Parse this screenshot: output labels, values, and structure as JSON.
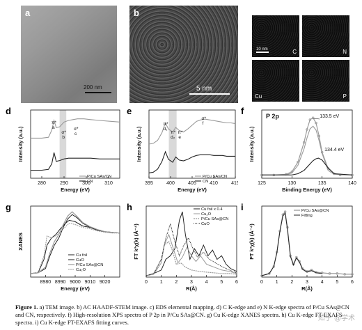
{
  "panel_labels": {
    "a": "a",
    "b": "b",
    "c": "c",
    "d": "d",
    "e": "e",
    "f": "f",
    "g": "g",
    "h": "h",
    "i": "i"
  },
  "scale_bars": {
    "a": "200 nm",
    "b": "5 nm",
    "c": "10 nm"
  },
  "eds_labels": [
    "C",
    "N",
    "Cu",
    "P"
  ],
  "caption": {
    "lead": "Figure 1.",
    "text": " a) TEM image. b) AC HAADF-STEM image. c) EDS elemental mapping. d) C K-edge and e) N K-edge spectra of P/Cu SAs@CN and CN, respectively. f) High-resolution XPS spectra of P 2p in P/Cu SAs@CN. g) Cu K-edge XANES spectra. h) Cu K-edge FT-EXAFS spectra. i) Cu K-edge FT-EXAFS fitting curves."
  },
  "watermark": "知乎 @学术",
  "colors": {
    "dark": "#222222",
    "light": "#9a9a9a",
    "band": "#d9d9d9"
  },
  "chart_data": [
    {
      "id": "d",
      "type": "line",
      "xlabel": "Energy (eV)",
      "ylabel": "Intensity (a.u.)",
      "xlim": [
        275,
        315
      ],
      "xticks": [
        280,
        290,
        300,
        310
      ],
      "annotations": [
        "π*",
        "a",
        "σ*",
        "b",
        "σ*",
        "c"
      ],
      "legend": [
        "P/Cu SAs/CN",
        "CN"
      ],
      "series": [
        {
          "name": "P/Cu SAs/CN",
          "x": [
            275,
            280,
            283,
            284.5,
            285.5,
            286.5,
            288,
            289,
            290,
            292,
            294,
            296,
            299,
            302,
            306,
            310,
            315
          ],
          "y": [
            0.6,
            0.6,
            0.61,
            0.7,
            0.82,
            0.73,
            0.74,
            0.77,
            0.8,
            0.82,
            0.83,
            0.84,
            0.84,
            0.83,
            0.82,
            0.81,
            0.8
          ]
        },
        {
          "name": "CN",
          "x": [
            275,
            280,
            283,
            284.5,
            285.5,
            286.5,
            288,
            289,
            290,
            292,
            294,
            296,
            299,
            302,
            306,
            310,
            315
          ],
          "y": [
            0.2,
            0.2,
            0.21,
            0.28,
            0.42,
            0.31,
            0.32,
            0.33,
            0.34,
            0.35,
            0.35,
            0.35,
            0.35,
            0.35,
            0.34,
            0.34,
            0.34
          ]
        }
      ]
    },
    {
      "id": "e",
      "type": "line",
      "xlabel": "Energy (eV)",
      "ylabel": "Intensity (a.u.)",
      "xlim": [
        395,
        415
      ],
      "xticks": [
        395,
        400,
        405,
        410,
        415
      ],
      "annotations": [
        "π*",
        "d₁",
        "π*",
        "d₂",
        "π*",
        "e",
        "σ*",
        "f"
      ],
      "legend": [
        "P/Cu SAs/CN",
        "CN"
      ],
      "series": [
        {
          "name": "P/Cu SAs/CN",
          "x": [
            395,
            396,
            397,
            398,
            398.8,
            399.5,
            400.5,
            401.2,
            402,
            403,
            404,
            405,
            406,
            407,
            408,
            409,
            410,
            411,
            412,
            413,
            414,
            415
          ],
          "y": [
            0.5,
            0.51,
            0.55,
            0.65,
            0.78,
            0.7,
            0.66,
            0.72,
            0.68,
            0.66,
            0.7,
            0.75,
            0.8,
            0.82,
            0.83,
            0.82,
            0.81,
            0.8,
            0.79,
            0.78,
            0.78,
            0.77
          ]
        },
        {
          "name": "CN",
          "x": [
            395,
            396,
            397,
            398,
            398.8,
            399.5,
            400.5,
            401.2,
            402,
            403,
            404,
            405,
            406,
            407,
            408,
            409,
            410,
            411,
            412,
            413,
            414,
            415
          ],
          "y": [
            0.12,
            0.13,
            0.17,
            0.27,
            0.4,
            0.3,
            0.26,
            0.33,
            0.29,
            0.28,
            0.3,
            0.33,
            0.35,
            0.36,
            0.36,
            0.36,
            0.35,
            0.35,
            0.35,
            0.34,
            0.34,
            0.34
          ]
        }
      ]
    },
    {
      "id": "f",
      "type": "line",
      "title": "P 2p",
      "xlabel": "Binding Energy (eV)",
      "ylabel": "Intensity (a.u.)",
      "xlim": [
        125,
        140
      ],
      "xticks": [
        125,
        130,
        135,
        140
      ],
      "annotations": [
        "133.5 eV",
        "134.4 eV"
      ],
      "series": [
        {
          "name": "data",
          "x": [
            125,
            127,
            129,
            130,
            131,
            132,
            132.5,
            133,
            133.5,
            134,
            134.5,
            135,
            136,
            137,
            138,
            140
          ],
          "y": [
            0.05,
            0.05,
            0.06,
            0.1,
            0.25,
            0.55,
            0.75,
            0.9,
            0.93,
            0.85,
            0.65,
            0.4,
            0.15,
            0.07,
            0.05,
            0.05
          ]
        },
        {
          "name": "133.5 eV",
          "x": [
            125,
            129,
            130,
            131,
            132,
            132.5,
            133,
            133.5,
            134,
            134.5,
            135,
            136,
            137,
            140
          ],
          "y": [
            0.05,
            0.05,
            0.08,
            0.2,
            0.45,
            0.62,
            0.76,
            0.8,
            0.74,
            0.58,
            0.38,
            0.12,
            0.06,
            0.05
          ]
        },
        {
          "name": "134.4 eV",
          "x": [
            125,
            130,
            131,
            132,
            133,
            133.5,
            134,
            134.4,
            135,
            136,
            137,
            140
          ],
          "y": [
            0.05,
            0.05,
            0.07,
            0.12,
            0.22,
            0.27,
            0.3,
            0.31,
            0.28,
            0.16,
            0.07,
            0.05
          ]
        }
      ]
    },
    {
      "id": "g",
      "type": "line",
      "xlabel": "Energy (eV)",
      "ylabel": "XANES",
      "xlim": [
        8970,
        9030
      ],
      "xticks": [
        8980,
        8990,
        9000,
        9010,
        9020
      ],
      "legend": [
        "Cu foil",
        "CuO",
        "P/Cu SAs@CN",
        "Cu₂O"
      ],
      "series": [
        {
          "name": "Cu foil",
          "x": [
            8970,
            8975,
            8979,
            8981,
            8984,
            8987,
            8990,
            8993,
            8996,
            9000,
            9005,
            9010,
            9015,
            9020,
            9025,
            9030
          ],
          "y": [
            0.05,
            0.06,
            0.25,
            0.45,
            0.55,
            0.6,
            0.68,
            0.75,
            0.8,
            0.78,
            0.72,
            0.7,
            0.66,
            0.64,
            0.63,
            0.62
          ]
        },
        {
          "name": "CuO",
          "x": [
            8970,
            8975,
            8980,
            8983,
            8986,
            8989,
            8992,
            8995,
            8998,
            9001,
            9005,
            9010,
            9015,
            9020,
            9025,
            9030
          ],
          "y": [
            0.05,
            0.06,
            0.12,
            0.3,
            0.45,
            0.55,
            0.7,
            0.82,
            0.88,
            0.84,
            0.76,
            0.7,
            0.66,
            0.64,
            0.63,
            0.62
          ]
        },
        {
          "name": "P/Cu SAs@CN",
          "x": [
            8970,
            8975,
            8980,
            8983,
            8986,
            8989,
            8992,
            8995,
            8998,
            9001,
            9005,
            9010,
            9015,
            9020,
            9025,
            9030
          ],
          "y": [
            0.05,
            0.06,
            0.14,
            0.34,
            0.5,
            0.6,
            0.74,
            0.86,
            0.92,
            0.86,
            0.77,
            0.71,
            0.67,
            0.64,
            0.63,
            0.62
          ]
        },
        {
          "name": "Cu₂O",
          "x": [
            8970,
            8975,
            8979,
            8981,
            8984,
            8987,
            8990,
            8993,
            8996,
            9000,
            9005,
            9010,
            9015,
            9020,
            9025,
            9030
          ],
          "y": [
            0.05,
            0.07,
            0.3,
            0.58,
            0.55,
            0.58,
            0.64,
            0.7,
            0.76,
            0.74,
            0.7,
            0.68,
            0.65,
            0.63,
            0.62,
            0.62
          ]
        }
      ]
    },
    {
      "id": "h",
      "type": "line",
      "xlabel": "R(Å)",
      "ylabel": "FT k³χ(k) (Å⁻⁴)",
      "xlim": [
        0,
        6
      ],
      "xticks": [
        0,
        1,
        2,
        3,
        4,
        5,
        6
      ],
      "legend": [
        "Cu foil x 0.4",
        "Cu₂O",
        "P/Cu SAs@CN",
        "CuO"
      ],
      "series": [
        {
          "name": "Cu foil x 0.4",
          "x": [
            0,
            0.5,
            1,
            1.3,
            1.6,
            1.9,
            2.2,
            2.4,
            2.6,
            2.9,
            3.2,
            3.5,
            3.8,
            4.1,
            4.4,
            4.7,
            5,
            5.3,
            5.6,
            6
          ],
          "y": [
            0.02,
            0.05,
            0.1,
            0.25,
            0.3,
            0.4,
            0.8,
            0.92,
            0.6,
            0.25,
            0.4,
            0.3,
            0.45,
            0.3,
            0.38,
            0.25,
            0.3,
            0.18,
            0.12,
            0.08
          ]
        },
        {
          "name": "Cu₂O",
          "x": [
            0,
            0.5,
            1,
            1.2,
            1.5,
            1.8,
            2.1,
            2.4,
            2.7,
            3,
            3.3,
            3.6,
            4,
            4.5,
            5,
            5.5,
            6
          ],
          "y": [
            0.02,
            0.04,
            0.2,
            0.45,
            0.6,
            0.4,
            0.2,
            0.28,
            0.42,
            0.3,
            0.22,
            0.3,
            0.18,
            0.14,
            0.1,
            0.08,
            0.05
          ]
        },
        {
          "name": "P/Cu SAs@CN",
          "x": [
            0,
            0.5,
            1,
            1.2,
            1.5,
            1.7,
            2,
            2.3,
            2.6,
            3,
            3.5,
            4,
            4.5,
            5,
            5.5,
            6
          ],
          "y": [
            0.02,
            0.05,
            0.25,
            0.45,
            0.5,
            0.4,
            0.18,
            0.2,
            0.14,
            0.1,
            0.08,
            0.07,
            0.06,
            0.05,
            0.05,
            0.04
          ]
        },
        {
          "name": "CuO",
          "x": [
            0,
            0.5,
            1,
            1.3,
            1.6,
            1.9,
            2.2,
            2.5,
            2.8,
            3.1,
            3.4,
            3.8,
            4.2,
            4.6,
            5,
            5.5,
            6
          ],
          "y": [
            0.02,
            0.05,
            0.25,
            0.55,
            0.75,
            0.5,
            0.3,
            0.45,
            0.55,
            0.4,
            0.28,
            0.35,
            0.25,
            0.2,
            0.15,
            0.1,
            0.06
          ]
        }
      ]
    },
    {
      "id": "i",
      "type": "line",
      "xlabel": "R(Å)",
      "ylabel": "FT k³χ(k) (Å⁻⁴)",
      "xlim": [
        0,
        6
      ],
      "xticks": [
        0,
        1,
        2,
        3,
        4,
        5,
        6
      ],
      "legend": [
        "P/Cu SAs@CN",
        "Fitting"
      ],
      "series": [
        {
          "name": "P/Cu SAs@CN",
          "x": [
            0,
            0.5,
            0.8,
            1,
            1.2,
            1.4,
            1.55,
            1.7,
            1.9,
            2.1,
            2.3,
            2.5,
            2.7,
            3,
            3.3,
            3.6,
            4,
            4.5,
            5,
            5.5,
            6
          ],
          "y": [
            0.02,
            0.05,
            0.15,
            0.35,
            0.65,
            0.88,
            0.92,
            0.7,
            0.3,
            0.18,
            0.28,
            0.22,
            0.12,
            0.08,
            0.1,
            0.07,
            0.06,
            0.05,
            0.05,
            0.04,
            0.04
          ]
        },
        {
          "name": "Fitting",
          "x": [
            0,
            0.5,
            0.8,
            1,
            1.2,
            1.4,
            1.55,
            1.7,
            1.9,
            2.1,
            2.3,
            2.5,
            2.7,
            3,
            3.3,
            3.6,
            4
          ],
          "y": [
            0.02,
            0.05,
            0.15,
            0.34,
            0.64,
            0.86,
            0.9,
            0.68,
            0.29,
            0.17,
            0.27,
            0.21,
            0.11,
            0.07,
            0.09,
            0.06,
            0.05
          ]
        }
      ]
    }
  ]
}
